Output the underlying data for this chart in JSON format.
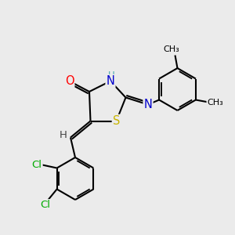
{
  "background_color": "#ebebeb",
  "bond_color": "#000000",
  "atom_colors": {
    "O": "#ff0000",
    "N": "#0000cd",
    "S": "#c8b400",
    "Cl": "#00aa00",
    "H": "#666666",
    "C": "#000000"
  },
  "font_size_atoms": 9.5,
  "line_width": 1.5,
  "figsize": [
    3.0,
    3.0
  ],
  "dpi": 100,
  "xlim": [
    0,
    10
  ],
  "ylim": [
    0,
    10
  ]
}
